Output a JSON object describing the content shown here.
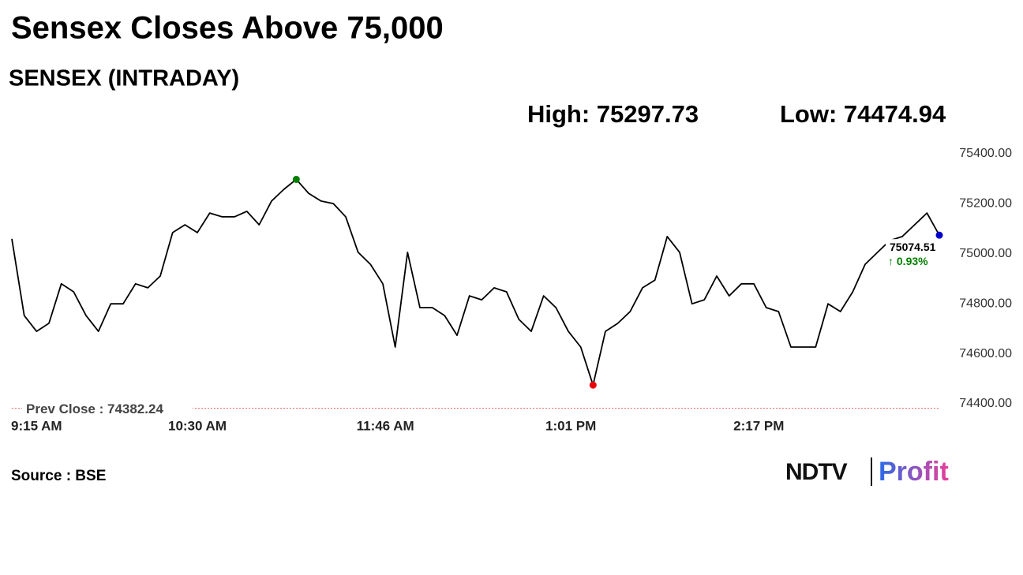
{
  "chart_data": {
    "type": "line",
    "title": "Sensex Closes Above 75,000",
    "subtitle": "SENSEX (INTRADAY)",
    "high_label": "High: 75297.73",
    "low_label": "Low: 74474.94",
    "last_label": "75074.51",
    "change_label": "↑ 0.93%",
    "prev_close": 74382.24,
    "prev_close_label": "Prev Close : 74382.24",
    "source": "Source : BSE",
    "logo": {
      "left": "NDTV",
      "right": "Profit"
    },
    "x": [
      "9:15 AM",
      "9:20 AM",
      "9:25 AM",
      "9:30 AM",
      "9:35 AM",
      "9:40 AM",
      "9:45 AM",
      "9:50 AM",
      "9:55 AM",
      "10:00 AM",
      "10:05 AM",
      "10:10 AM",
      "10:15 AM",
      "10:20 AM",
      "10:25 AM",
      "10:30 AM",
      "10:35 AM",
      "10:40 AM",
      "10:45 AM",
      "10:50 AM",
      "10:55 AM",
      "11:00 AM",
      "11:05 AM",
      "11:10 AM",
      "11:15 AM",
      "11:20 AM",
      "11:25 AM",
      "11:30 AM",
      "11:35 AM",
      "11:40 AM",
      "11:45 AM",
      "11:50 AM",
      "11:55 AM",
      "12:00 PM",
      "12:05 PM",
      "12:10 PM",
      "12:15 PM",
      "12:20 PM",
      "12:25 PM",
      "12:30 PM",
      "12:35 PM",
      "12:40 PM",
      "12:45 PM",
      "12:50 PM",
      "12:55 PM",
      "1:00 PM",
      "1:05 PM",
      "1:10 PM",
      "1:15 PM",
      "1:20 PM",
      "1:25 PM",
      "1:30 PM",
      "1:35 PM",
      "1:40 PM",
      "1:45 PM",
      "1:50 PM",
      "1:55 PM",
      "2:00 PM",
      "2:05 PM",
      "2:10 PM",
      "2:15 PM",
      "2:20 PM",
      "2:25 PM",
      "2:30 PM",
      "2:35 PM",
      "2:40 PM",
      "2:45 PM",
      "2:50 PM",
      "2:55 PM",
      "3:00 PM",
      "3:05 PM",
      "3:10 PM",
      "3:15 PM",
      "3:20 PM",
      "3:25 PM",
      "3:30 PM"
    ],
    "series": [
      {
        "name": "SENSEX",
        "color": "#000000",
        "values": [
          75060,
          74753,
          74690,
          74722,
          74880,
          74848,
          74753,
          74690,
          74800,
          74800,
          74880,
          74864,
          74911,
          75085,
          75116,
          75085,
          75163,
          75148,
          75148,
          75170,
          75116,
          75211,
          75258,
          75297.73,
          75242,
          75211,
          75201,
          75148,
          75006,
          74958,
          74880,
          74627,
          75006,
          74785,
          74785,
          74753,
          74674,
          74832,
          74816,
          74864,
          74848,
          74738,
          74690,
          74832,
          74785,
          74690,
          74627,
          74474.94,
          74690,
          74722,
          74769,
          74864,
          74895,
          75069,
          75006,
          74800,
          74816,
          74911,
          74832,
          74880,
          74880,
          74785,
          74769,
          74627,
          74627,
          74627,
          74800,
          74769,
          74848,
          74958,
          75006,
          75053,
          75069,
          75116,
          75163,
          75074.51
        ]
      }
    ],
    "high_color": "#008000",
    "low_color": "#e8000b",
    "last_color": "#0000cc",
    "prev_close_color": "#e06060",
    "change_color": "#008000",
    "xlim": [
      "9:15 AM",
      "3:30 PM"
    ],
    "xticks": [
      "9:15 AM",
      "10:30 AM",
      "11:46 AM",
      "1:01 PM",
      "2:17 PM"
    ],
    "ylim": [
      74370,
      75430
    ],
    "yticks": [
      {
        "value": 74400,
        "label": "74400.00"
      },
      {
        "value": 74600,
        "label": "74600.00"
      },
      {
        "value": 74800,
        "label": "74800.00"
      },
      {
        "value": 75000,
        "label": "75000.00"
      },
      {
        "value": 75200,
        "label": "75200.00"
      },
      {
        "value": 75400,
        "label": "75400.00"
      }
    ]
  }
}
